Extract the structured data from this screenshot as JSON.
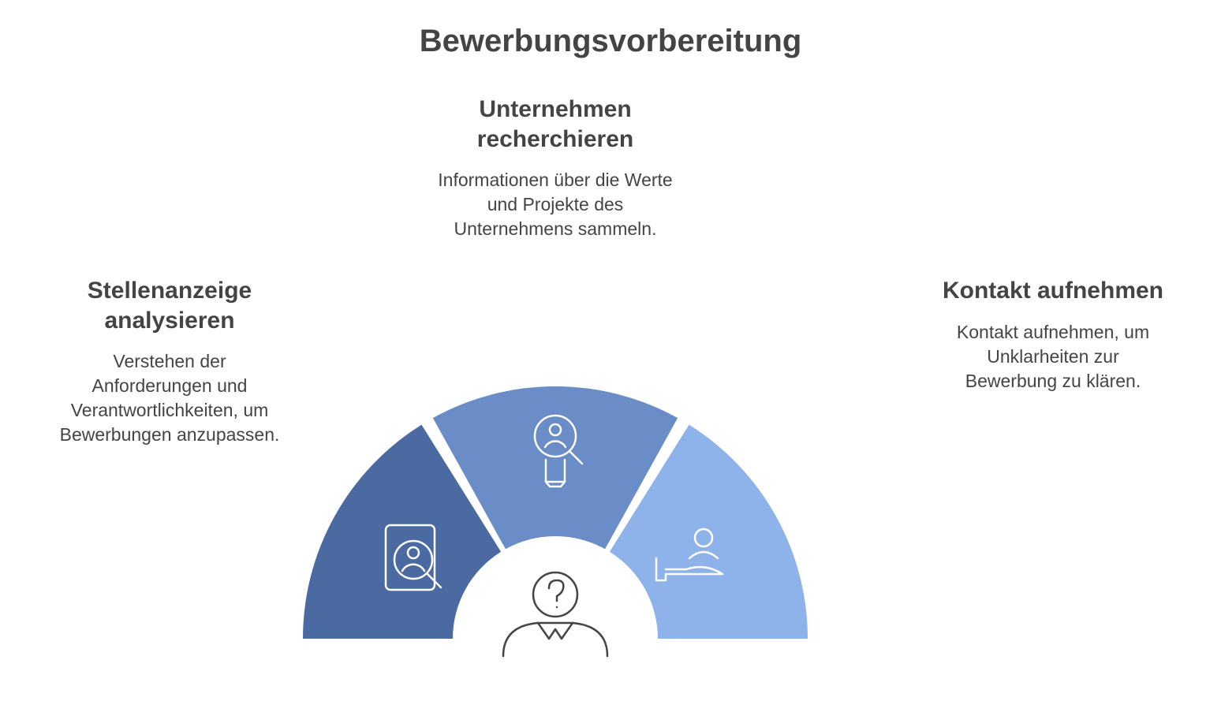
{
  "title": "Bewerbungsvorbereitung",
  "title_fontsize": 40,
  "title_color": "#444444",
  "section_heading_fontsize": 30,
  "section_body_fontsize": 23,
  "text_color": "#444444",
  "sections": [
    {
      "id": "left",
      "heading": "Stellenanzeige analysieren",
      "body": "Verstehen der Anforderungen und Verantwortlichkeiten, um Bewerbungen anzupassen."
    },
    {
      "id": "top",
      "heading": "Unternehmen recherchieren",
      "body": "Informationen über die Werte und Projekte des Unternehmens sammeln."
    },
    {
      "id": "right",
      "heading": "Kontakt aufnehmen",
      "body": "Kontakt aufnehmen, um Unklarheiten zur Bewerbung zu klären."
    }
  ],
  "chart": {
    "type": "semi_donut",
    "outer_radius": 320,
    "inner_radius": 130,
    "gap_deg": 3,
    "background_color": "#ffffff",
    "icon_stroke": "#ffffff",
    "center_icon_stroke": "#444444",
    "segments": [
      {
        "color": "#4b6aa1"
      },
      {
        "color": "#6a8cc7"
      },
      {
        "color": "#8eb3ea"
      }
    ]
  }
}
